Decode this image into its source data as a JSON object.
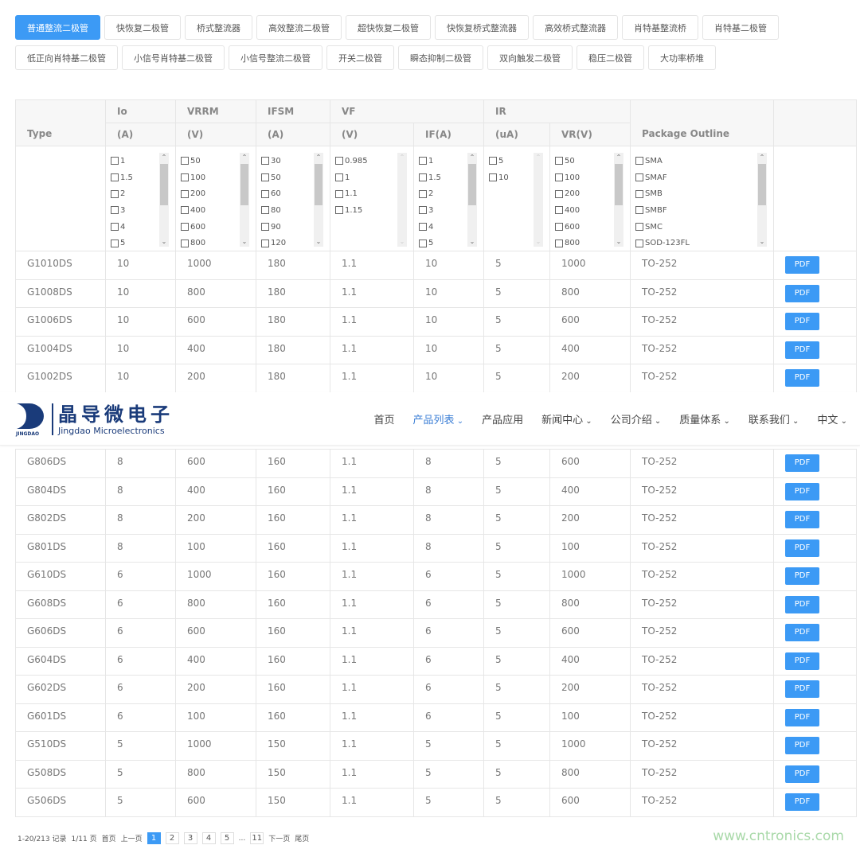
{
  "tabs": {
    "row1": [
      "普通整流二极管",
      "快恢复二极管",
      "桥式整流器",
      "高效整流二极管",
      "超快恢复二极管",
      "快恢复桥式整流器",
      "高效桥式整流器",
      "肖特基整流桥",
      "肖特基二极管"
    ],
    "row2": [
      "低正向肖特基二极管",
      "小信号肖特基二极管",
      "小信号整流二极管",
      "开关二极管",
      "瞬态抑制二极管",
      "双向触发二极管",
      "稳压二极管",
      "大功率桥堆"
    ],
    "active": 0
  },
  "table": {
    "headers": {
      "type": "Type",
      "io": "Io",
      "io_unit": "(A)",
      "vrrm": "VRRM",
      "vrrm_unit": "(V)",
      "ifsm": "IFSM",
      "ifsm_unit": "(A)",
      "vf": "VF",
      "vf_unit": "(V)",
      "if_unit": "IF(A)",
      "ir": "IR",
      "ir_unit": "(uA)",
      "vr_unit": "VR(V)",
      "package": "Package Outline"
    },
    "filters": [
      [
        "1",
        "1.5",
        "2",
        "3",
        "4",
        "5"
      ],
      [
        "50",
        "100",
        "200",
        "400",
        "600",
        "800"
      ],
      [
        "30",
        "50",
        "60",
        "80",
        "90",
        "120"
      ],
      [
        "0.985",
        "1",
        "1.1",
        "1.15"
      ],
      [
        "1",
        "1.5",
        "2",
        "3",
        "4",
        "5"
      ],
      [
        "5",
        "10"
      ],
      [
        "50",
        "100",
        "200",
        "400",
        "600",
        "800"
      ],
      [
        "SMA",
        "SMAF",
        "SMB",
        "SMBF",
        "SMC",
        "SOD-123FL"
      ]
    ],
    "pdf_label": "PDF",
    "rows_top": [
      [
        "G1010DS",
        "10",
        "1000",
        "180",
        "1.1",
        "10",
        "5",
        "1000",
        "TO-252"
      ],
      [
        "G1008DS",
        "10",
        "800",
        "180",
        "1.1",
        "10",
        "5",
        "800",
        "TO-252"
      ],
      [
        "G1006DS",
        "10",
        "600",
        "180",
        "1.1",
        "10",
        "5",
        "600",
        "TO-252"
      ],
      [
        "G1004DS",
        "10",
        "400",
        "180",
        "1.1",
        "10",
        "5",
        "400",
        "TO-252"
      ],
      [
        "G1002DS",
        "10",
        "200",
        "180",
        "1.1",
        "10",
        "5",
        "200",
        "TO-252"
      ]
    ],
    "rows_bottom": [
      [
        "G806DS",
        "8",
        "600",
        "160",
        "1.1",
        "8",
        "5",
        "600",
        "TO-252"
      ],
      [
        "G804DS",
        "8",
        "400",
        "160",
        "1.1",
        "8",
        "5",
        "400",
        "TO-252"
      ],
      [
        "G802DS",
        "8",
        "200",
        "160",
        "1.1",
        "8",
        "5",
        "200",
        "TO-252"
      ],
      [
        "G801DS",
        "8",
        "100",
        "160",
        "1.1",
        "8",
        "5",
        "100",
        "TO-252"
      ],
      [
        "G610DS",
        "6",
        "1000",
        "160",
        "1.1",
        "6",
        "5",
        "1000",
        "TO-252"
      ],
      [
        "G608DS",
        "6",
        "800",
        "160",
        "1.1",
        "6",
        "5",
        "800",
        "TO-252"
      ],
      [
        "G606DS",
        "6",
        "600",
        "160",
        "1.1",
        "6",
        "5",
        "600",
        "TO-252"
      ],
      [
        "G604DS",
        "6",
        "400",
        "160",
        "1.1",
        "6",
        "5",
        "400",
        "TO-252"
      ],
      [
        "G602DS",
        "6",
        "200",
        "160",
        "1.1",
        "6",
        "5",
        "200",
        "TO-252"
      ],
      [
        "G601DS",
        "6",
        "100",
        "160",
        "1.1",
        "6",
        "5",
        "100",
        "TO-252"
      ],
      [
        "G510DS",
        "5",
        "1000",
        "150",
        "1.1",
        "5",
        "5",
        "1000",
        "TO-252"
      ],
      [
        "G508DS",
        "5",
        "800",
        "150",
        "1.1",
        "5",
        "5",
        "800",
        "TO-252"
      ],
      [
        "G506DS",
        "5",
        "600",
        "150",
        "1.1",
        "5",
        "5",
        "600",
        "TO-252"
      ]
    ]
  },
  "nav": {
    "logo_mark": "JINGDAO",
    "logo_cn": "晶导微电子",
    "logo_en": "Jingdao Microelectronics",
    "items": [
      {
        "label": "首页",
        "dd": false
      },
      {
        "label": "产品列表",
        "dd": true,
        "active": true
      },
      {
        "label": "产品应用",
        "dd": false
      },
      {
        "label": "新闻中心",
        "dd": true
      },
      {
        "label": "公司介绍",
        "dd": true
      },
      {
        "label": "质量体系",
        "dd": true
      },
      {
        "label": "联系我们",
        "dd": true
      },
      {
        "label": "中文",
        "dd": true
      }
    ]
  },
  "pager": {
    "records": "1-20/213 记录",
    "pages": "1/11 页",
    "first": "首页",
    "prev": "上一页",
    "numbers": [
      "1",
      "2",
      "3",
      "4",
      "5"
    ],
    "ellipsis": "...",
    "last_num": "11",
    "next": "下一页",
    "last": "尾页",
    "current": "1"
  },
  "watermark": "www.cntronics.com",
  "colors": {
    "accent": "#3c9af5",
    "brand": "#1a3b7a"
  }
}
